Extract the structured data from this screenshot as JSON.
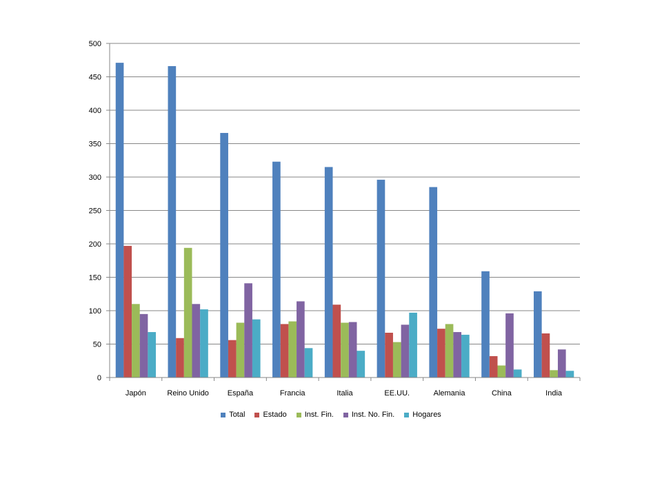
{
  "chart_data": {
    "type": "bar",
    "categories": [
      "Japón",
      "Reino Unido",
      "España",
      "Francia",
      "Italia",
      "EE.UU.",
      "Alemania",
      "China",
      "India"
    ],
    "series": [
      {
        "name": "Total",
        "color": "#4F81BD",
        "values": [
          471,
          466,
          366,
          323,
          315,
          296,
          285,
          159,
          129
        ]
      },
      {
        "name": "Estado",
        "color": "#C0504D",
        "values": [
          197,
          59,
          56,
          80,
          109,
          67,
          73,
          32,
          66
        ]
      },
      {
        "name": "Inst. Fin.",
        "color": "#9BBB59",
        "values": [
          110,
          194,
          82,
          84,
          82,
          53,
          80,
          18,
          11
        ]
      },
      {
        "name": "Inst. No. Fin.",
        "color": "#8064A2",
        "values": [
          95,
          110,
          141,
          114,
          83,
          79,
          68,
          96,
          42
        ]
      },
      {
        "name": "Hogares",
        "color": "#4BACC6",
        "values": [
          68,
          102,
          87,
          44,
          40,
          97,
          64,
          12,
          10
        ]
      }
    ],
    "ylim": [
      0,
      500
    ],
    "yticks": [
      0,
      50,
      100,
      150,
      200,
      250,
      300,
      350,
      400,
      450,
      500
    ],
    "grid": true,
    "legend_position": "bottom"
  }
}
